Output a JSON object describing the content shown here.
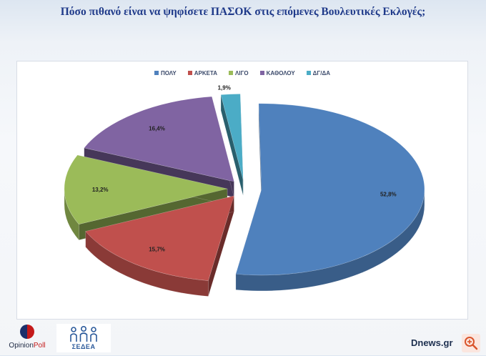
{
  "title": "Πόσο πιθανό είναι να  ψηφίσετε ΠΑΣΟΚ στις επόμενες Βουλευτικές Εκλογές;",
  "chart_data": {
    "type": "pie",
    "title": "Πόσο πιθανό είναι να  ψηφίσετε ΠΑΣΟΚ στις επόμενες Βουλευτικές Εκλογές;",
    "style": "3d-exploded",
    "legend_placement": "top",
    "categories": [
      "ΠΟΛΥ",
      "ΑΡΚΕΤΑ",
      "ΛΙΓΟ",
      "ΚΑΘΟΛΟΥ",
      "ΔΓ/ΔΑ"
    ],
    "values": [
      52.8,
      15.7,
      13.2,
      16.4,
      1.9
    ],
    "value_labels": [
      "52,8%",
      "15,7%",
      "13,2%",
      "16,4%",
      "1,9%"
    ],
    "colors": [
      "#4f81bd",
      "#c0504d",
      "#9bbb59",
      "#8064a2",
      "#4bacc6"
    ]
  },
  "logos": {
    "opinion_text_a": "Opinion",
    "opinion_text_b": "Poll",
    "sedea_text": "ΣΕΔΕΑ"
  },
  "footer": {
    "site": "Dnews.gr",
    "zoom_icon": "zoom-in-icon"
  }
}
